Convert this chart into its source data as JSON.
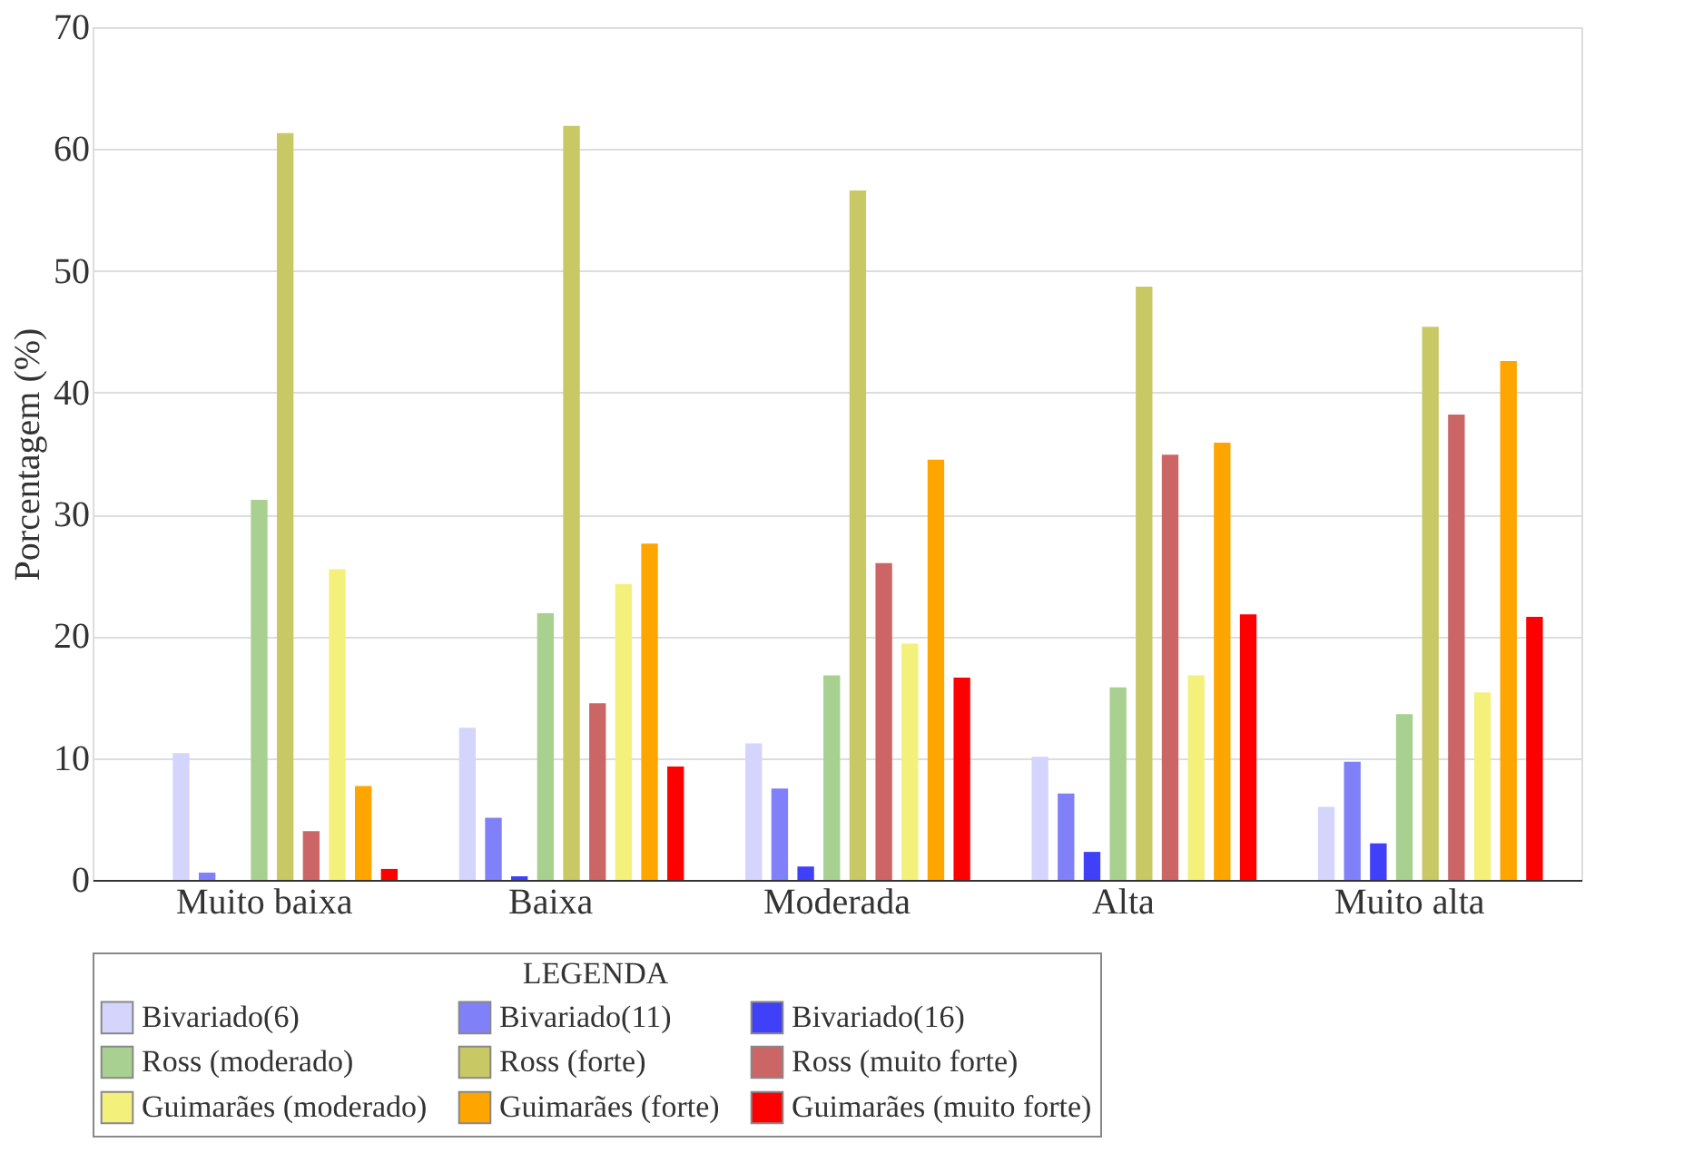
{
  "chart_data": {
    "type": "bar",
    "ylabel": "Porcentagem (%)",
    "legend_title": "LEGENDA",
    "categories": [
      "Muito baixa",
      "Baixa",
      "Moderada",
      "Alta",
      "Muito alta"
    ],
    "series": [
      {
        "name": "Bivariado(6)",
        "color": "#d4d4fc",
        "values": [
          10.4,
          12.5,
          11.2,
          10.1,
          6.0
        ]
      },
      {
        "name": "Bivariado(11)",
        "color": "#8080f8",
        "values": [
          0.6,
          5.1,
          7.5,
          7.1,
          9.7
        ]
      },
      {
        "name": "Bivariado(16)",
        "color": "#4040f8",
        "values": [
          0,
          0.3,
          1.1,
          2.3,
          3.0
        ]
      },
      {
        "name": "Ross (moderado)",
        "color": "#a8d090",
        "values": [
          31.2,
          21.9,
          16.8,
          15.8,
          13.6
        ]
      },
      {
        "name": "Ross (forte)",
        "color": "#c8c864",
        "values": [
          61.3,
          61.9,
          56.6,
          48.7,
          45.4
        ]
      },
      {
        "name": "Ross (muito forte)",
        "color": "#cc6666",
        "values": [
          4.0,
          14.5,
          26.0,
          34.9,
          38.2
        ]
      },
      {
        "name": "Guimarães (moderado)",
        "color": "#f4f07c",
        "values": [
          25.5,
          24.3,
          19.4,
          16.8,
          15.4
        ]
      },
      {
        "name": "Guimarães (forte)",
        "color": "#ffa500",
        "values": [
          7.7,
          27.6,
          34.5,
          35.9,
          42.6
        ]
      },
      {
        "name": "Guimarães (muito forte)",
        "color": "#ff0000",
        "values": [
          0.9,
          9.3,
          16.6,
          21.8,
          21.6
        ]
      }
    ],
    "ylim": [
      0,
      70
    ],
    "yticks": [
      0,
      10,
      20,
      30,
      40,
      50,
      60,
      70
    ],
    "grid": "y",
    "legend": "bottom"
  }
}
